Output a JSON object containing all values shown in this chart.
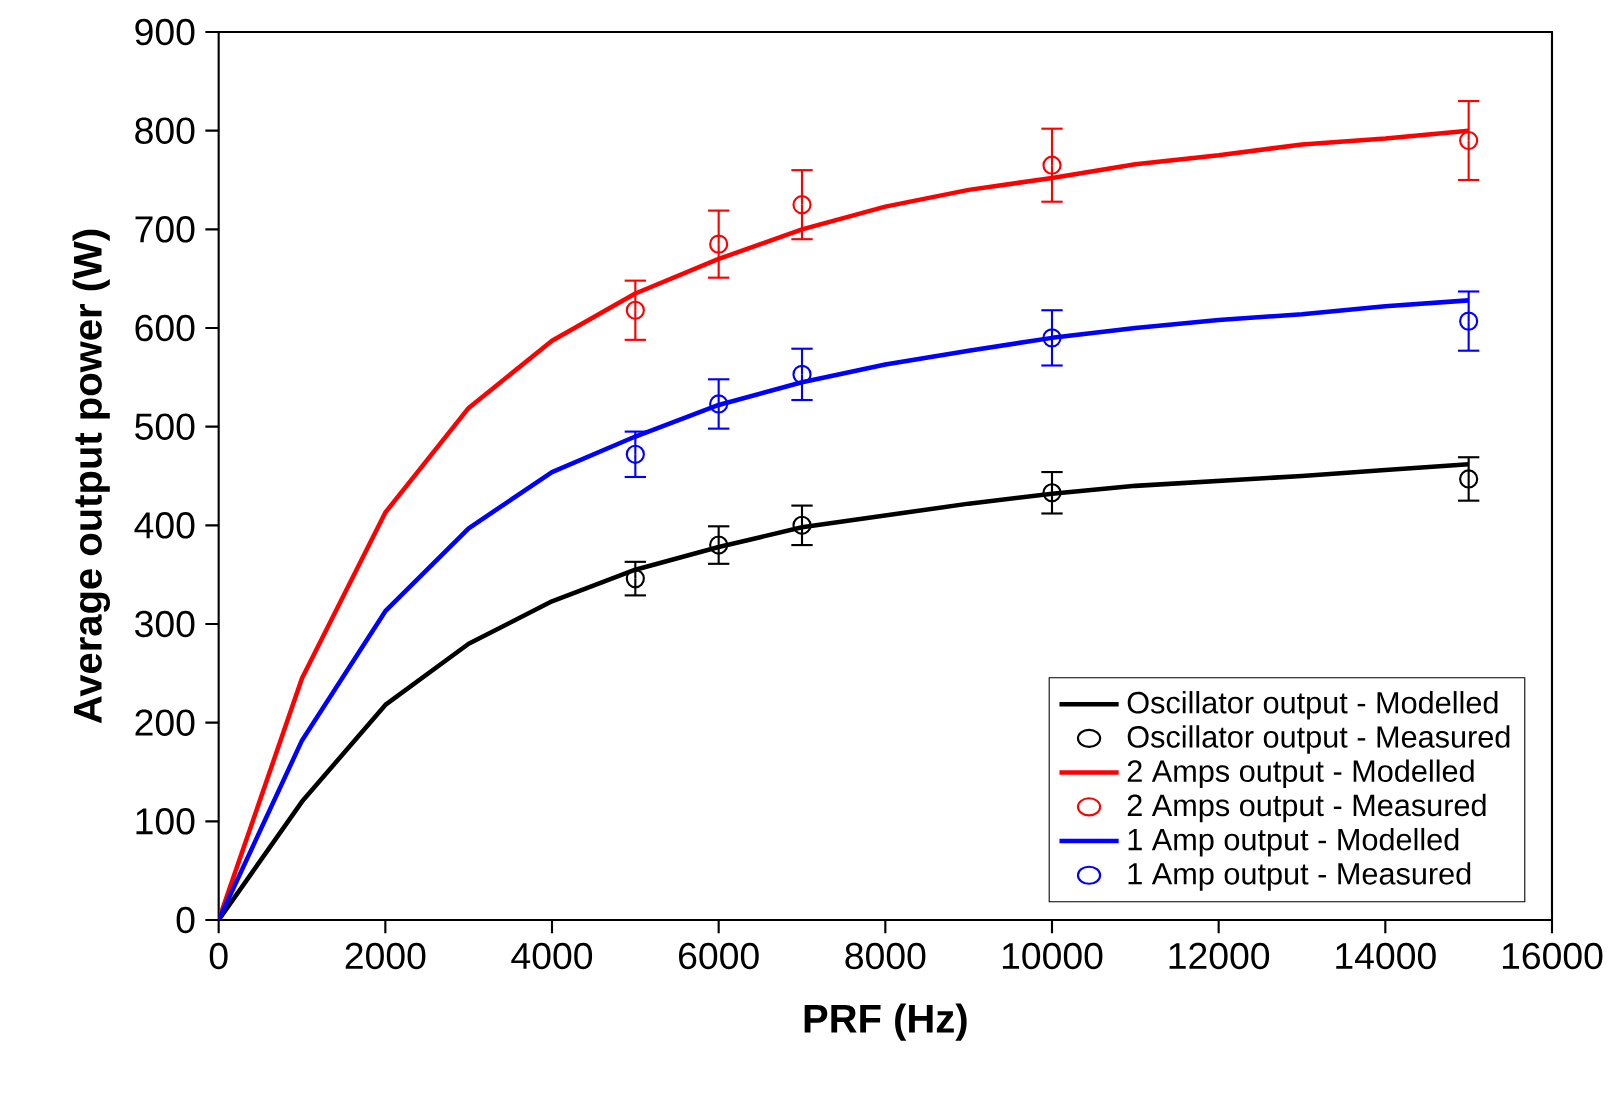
{
  "chart_data": {
    "type": "line",
    "xlabel": "PRF (Hz)",
    "ylabel": "Average output power (W)",
    "xlim": [
      0,
      16000
    ],
    "ylim": [
      0,
      900
    ],
    "xticks": [
      0,
      2000,
      4000,
      6000,
      8000,
      10000,
      12000,
      14000,
      16000
    ],
    "yticks": [
      0,
      100,
      200,
      300,
      400,
      500,
      600,
      700,
      800,
      900
    ],
    "grid": false,
    "legend": "bottom right",
    "series": [
      {
        "name": "Oscillator output - Modelled",
        "type": "line",
        "color": "#000000",
        "marker": "none",
        "x": [
          0,
          1000,
          2000,
          3000,
          4000,
          5000,
          6000,
          7000,
          8000,
          9000,
          10000,
          11000,
          12000,
          13000,
          14000,
          15000
        ],
        "values": [
          0,
          120,
          218,
          280,
          323,
          355,
          378,
          398,
          410,
          422,
          432,
          440,
          445,
          450,
          456,
          462
        ]
      },
      {
        "name": "Oscillator output - Measured",
        "type": "scatter",
        "color": "#000000",
        "marker": "circle",
        "x": [
          5000,
          6000,
          7000,
          10000,
          15000
        ],
        "values": [
          346,
          380,
          400,
          433,
          447
        ],
        "errors": [
          17,
          19,
          20,
          21,
          22
        ]
      },
      {
        "name": "2 Amps output - Modelled",
        "type": "line",
        "color": "#ff0000",
        "marker": "none",
        "x": [
          0,
          1000,
          2000,
          3000,
          4000,
          5000,
          6000,
          7000,
          8000,
          9000,
          10000,
          11000,
          12000,
          13000,
          14000,
          15000
        ],
        "values": [
          0,
          245,
          413,
          519,
          587,
          635,
          670,
          700,
          723,
          740,
          752,
          766,
          775,
          786,
          792,
          800
        ]
      },
      {
        "name": "2 Amps output - Measured",
        "type": "scatter",
        "color": "#ff0000",
        "marker": "circle",
        "x": [
          5000,
          6000,
          7000,
          10000,
          15000
        ],
        "values": [
          618,
          685,
          725,
          765,
          790
        ],
        "errors": [
          30,
          34,
          35,
          37,
          40
        ]
      },
      {
        "name": "1 Amp output - Modelled",
        "type": "line",
        "color": "#0000ff",
        "marker": "none",
        "x": [
          0,
          1000,
          2000,
          3000,
          4000,
          5000,
          6000,
          7000,
          8000,
          9000,
          10000,
          11000,
          12000,
          13000,
          14000,
          15000
        ],
        "values": [
          0,
          182,
          313,
          397,
          454,
          490,
          522,
          545,
          563,
          577,
          590,
          600,
          608,
          614,
          622,
          628
        ]
      },
      {
        "name": "1 Amp output - Measured",
        "type": "scatter",
        "color": "#0000ff",
        "marker": "circle",
        "x": [
          5000,
          6000,
          7000,
          10000,
          15000
        ],
        "values": [
          472,
          523,
          553,
          590,
          607
        ],
        "errors": [
          23,
          25,
          26,
          28,
          30
        ]
      }
    ]
  }
}
